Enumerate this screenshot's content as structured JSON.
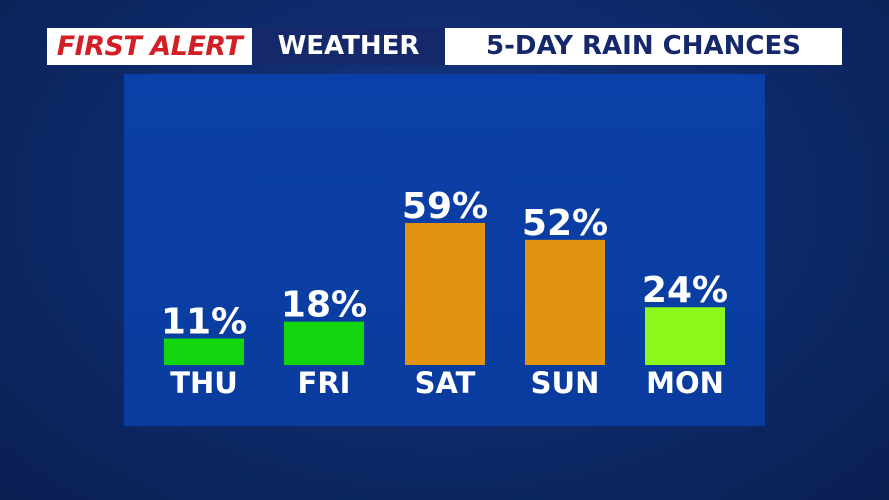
{
  "header": {
    "brand": "FIRST ALERT",
    "section": "WEATHER",
    "title": "5-DAY RAIN CHANCES"
  },
  "colors": {
    "low": "#13d60f",
    "mid": "#8cf71a",
    "high": "#e0940f"
  },
  "chart_data": {
    "type": "bar",
    "title": "5-DAY RAIN CHANCES",
    "categories": [
      "THU",
      "FRI",
      "SAT",
      "SUN",
      "MON"
    ],
    "values": [
      11,
      18,
      59,
      52,
      24
    ],
    "value_labels": [
      "11%",
      "18%",
      "59%",
      "52%",
      "24%"
    ],
    "bar_colors": [
      "#13d60f",
      "#13d60f",
      "#e0940f",
      "#e0940f",
      "#8cf71a"
    ],
    "unit": "%",
    "ylim": [
      0,
      59
    ],
    "grid": false,
    "legend": "none"
  }
}
